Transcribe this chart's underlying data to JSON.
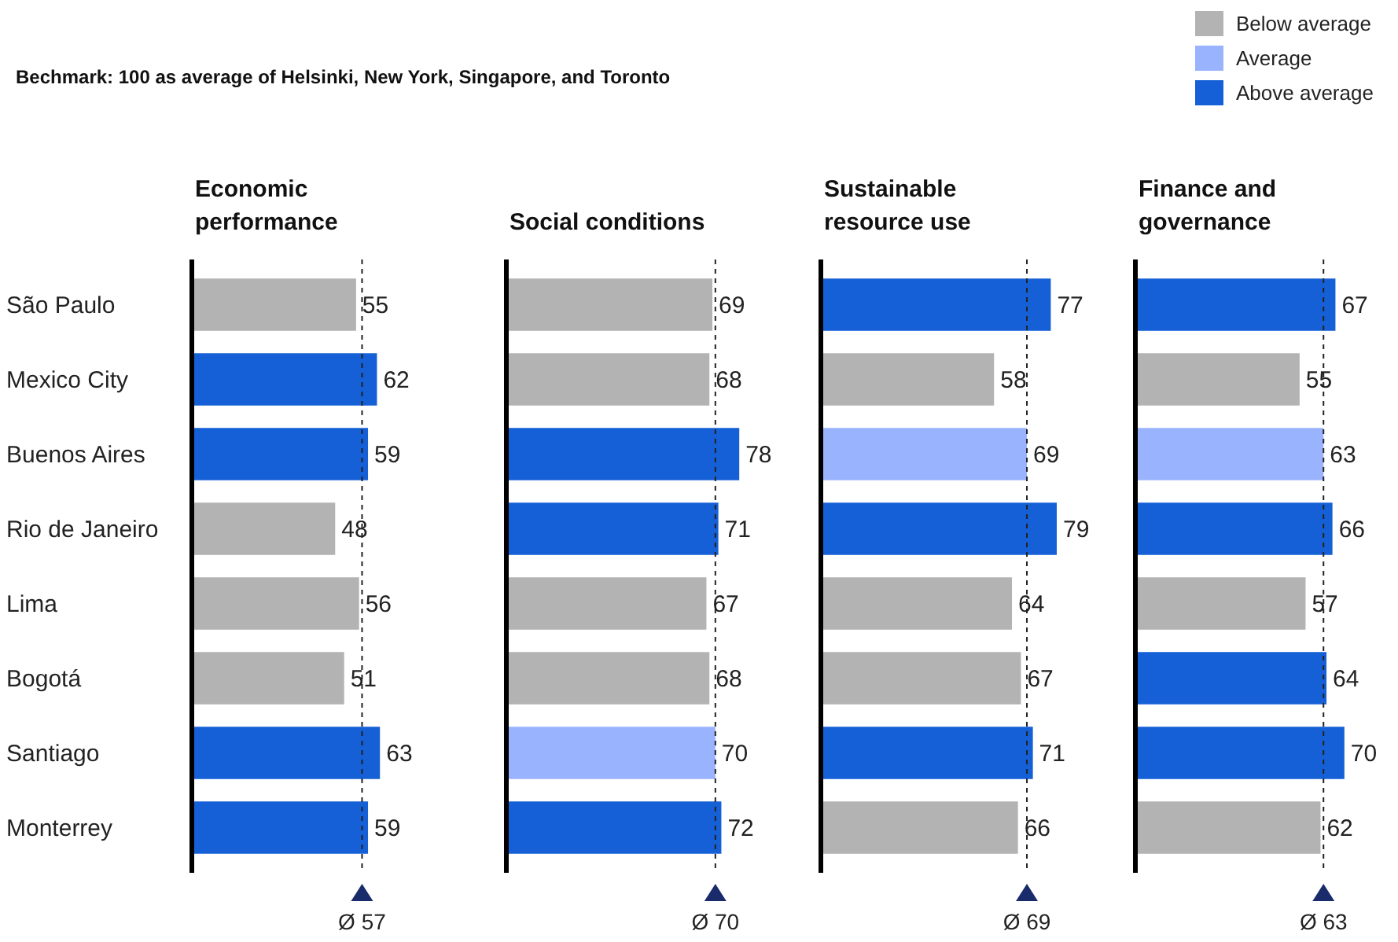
{
  "chart_data": [
    {
      "type": "bar",
      "orientation": "horizontal",
      "stacked": true,
      "title": "Economic performance",
      "annotations": [
        "Bechmark: 100 as average of Helsinki, New York, Singapore, and Toronto"
      ],
      "categories": [
        "São Paulo",
        "Mexico City",
        "Buenos Aires",
        "Rio de Janeiro",
        "Lima",
        "Bogotá",
        "Santiago",
        "Monterrey"
      ],
      "tick_labels": "y",
      "data_labels": true,
      "series": [
        {
          "color": "#b3b3b3",
          "values": [
            55,
            null,
            null,
            48,
            56,
            51,
            null,
            null
          ]
        },
        {
          "color": "#1560d6",
          "values": [
            null,
            62,
            59,
            null,
            null,
            null,
            63,
            59
          ]
        }
      ],
      "ref_lines": [
        {
          "axis": "x",
          "value": 57,
          "label": "Ø 57",
          "line_style": "dashed"
        }
      ]
    },
    {
      "type": "bar",
      "orientation": "horizontal",
      "stacked": true,
      "title": "Social conditions",
      "categories": [
        null,
        null,
        null,
        null,
        null,
        null,
        null,
        null
      ],
      "tick_labels": false,
      "data_labels": true,
      "series": [
        {
          "color": "#b3b3b3",
          "values": [
            69,
            68,
            null,
            null,
            67,
            68,
            null,
            null
          ]
        },
        {
          "color": "#99b3ff",
          "values": [
            null,
            null,
            null,
            null,
            null,
            null,
            70,
            null
          ]
        },
        {
          "color": "#1560d6",
          "values": [
            null,
            null,
            78,
            71,
            null,
            null,
            null,
            72
          ]
        }
      ],
      "ref_lines": [
        {
          "axis": "x",
          "value": 70,
          "label": "Ø 70",
          "line_style": "dashed"
        }
      ]
    },
    {
      "type": "bar",
      "orientation": "horizontal",
      "stacked": true,
      "title": "Sustainable resource use",
      "categories": [
        null,
        null,
        null,
        null,
        null,
        null,
        null,
        null
      ],
      "tick_labels": false,
      "data_labels": true,
      "series": [
        {
          "color": "#b3b3b3",
          "values": [
            null,
            58,
            null,
            null,
            64,
            67,
            null,
            66
          ]
        },
        {
          "color": "#99b3ff",
          "values": [
            null,
            null,
            69,
            null,
            null,
            null,
            null,
            null
          ]
        },
        {
          "color": "#1560d6",
          "values": [
            77,
            null,
            null,
            79,
            null,
            null,
            71,
            null
          ]
        }
      ],
      "ref_lines": [
        {
          "axis": "x",
          "value": 69,
          "label": "Ø 69",
          "line_style": "dashed"
        }
      ]
    },
    {
      "type": "bar",
      "orientation": "horizontal",
      "stacked": true,
      "title": "Finance and governance",
      "categories": [
        null,
        null,
        null,
        null,
        null,
        null,
        null,
        null
      ],
      "tick_labels": false,
      "data_labels": true,
      "legend": "top right",
      "series": [
        {
          "name": "Below average",
          "color": "#b3b3b3",
          "values": [
            null,
            55,
            null,
            null,
            57,
            null,
            null,
            62
          ]
        },
        {
          "name": "Average",
          "color": "#99b3ff",
          "values": [
            null,
            null,
            63,
            null,
            null,
            null,
            null,
            null
          ]
        },
        {
          "name": "Above average",
          "color": "#1560d6",
          "values": [
            67,
            null,
            null,
            66,
            null,
            64,
            70,
            null
          ]
        }
      ],
      "ref_lines": [
        {
          "axis": "x",
          "value": 63,
          "label": "Ø 63",
          "line_style": "dashed"
        }
      ]
    }
  ]
}
